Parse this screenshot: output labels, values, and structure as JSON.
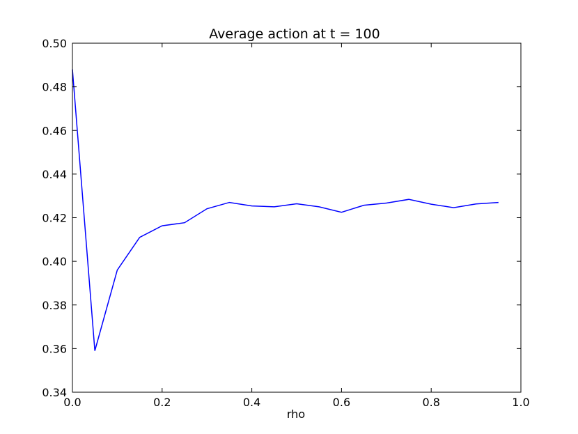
{
  "chart_data": {
    "type": "line",
    "title": "Average action at t = 100",
    "xlabel": "rho",
    "ylabel": "",
    "xlim": [
      0.0,
      1.0
    ],
    "ylim": [
      0.34,
      0.5
    ],
    "x_ticks": [
      "0.0",
      "0.2",
      "0.4",
      "0.6",
      "0.8",
      "1.0"
    ],
    "y_ticks": [
      "0.34",
      "0.36",
      "0.38",
      "0.40",
      "0.42",
      "0.44",
      "0.46",
      "0.48",
      "0.50"
    ],
    "grid": false,
    "legend": "none",
    "series": [
      {
        "color": "#0000ff",
        "x": [
          0.0,
          0.05,
          0.1,
          0.15,
          0.2,
          0.25,
          0.3,
          0.35,
          0.4,
          0.45,
          0.5,
          0.55,
          0.6,
          0.65,
          0.7,
          0.75,
          0.8,
          0.85,
          0.9,
          0.95
        ],
        "y": [
          0.488,
          0.359,
          0.396,
          0.411,
          0.4163,
          0.4177,
          0.4241,
          0.427,
          0.4254,
          0.425,
          0.4264,
          0.425,
          0.4225,
          0.4257,
          0.4267,
          0.4284,
          0.4262,
          0.4246,
          0.4263,
          0.427
        ]
      }
    ]
  }
}
